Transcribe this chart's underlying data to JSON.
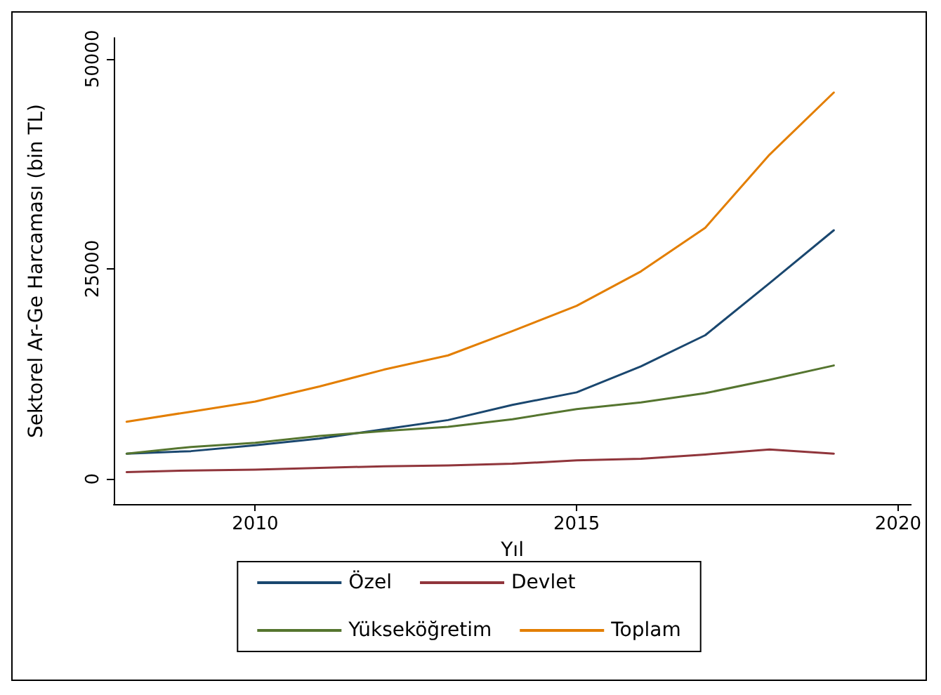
{
  "chart_data": {
    "type": "line",
    "xlabel": "Yıl",
    "ylabel": "Sektorel Ar-Ge Harcaması (bin TL)",
    "x": [
      2008,
      2009,
      2010,
      2011,
      2012,
      2013,
      2014,
      2015,
      2016,
      2017,
      2018,
      2019
    ],
    "series": [
      {
        "name": "Özel",
        "color": "#1a476f",
        "values": [
          3000,
          3300,
          4000,
          4800,
          5900,
          7000,
          8800,
          10300,
          13400,
          17100,
          23300,
          29600
        ]
      },
      {
        "name": "Devlet",
        "color": "#90353b",
        "values": [
          800,
          1000,
          1100,
          1300,
          1500,
          1600,
          1800,
          2200,
          2400,
          2900,
          3500,
          3000
        ]
      },
      {
        "name": "Yükseköğretim",
        "color": "#55752f",
        "values": [
          3000,
          3800,
          4300,
          5100,
          5700,
          6200,
          7100,
          8300,
          9100,
          10200,
          11800,
          13500
        ]
      },
      {
        "name": "Toplam",
        "color": "#e37e00",
        "values": [
          6800,
          8000,
          9200,
          11000,
          13000,
          14700,
          17600,
          20600,
          24700,
          29900,
          38600,
          46000
        ]
      }
    ],
    "xlim": [
      2007.8,
      2020.2
    ],
    "xticks": [
      2010,
      2015,
      2020
    ],
    "ylim": [
      -3000,
      52500
    ],
    "yticks": [
      0,
      25000,
      50000
    ],
    "grid": false,
    "legend": "bottom",
    "marker": "none",
    "line_style": "solid"
  }
}
